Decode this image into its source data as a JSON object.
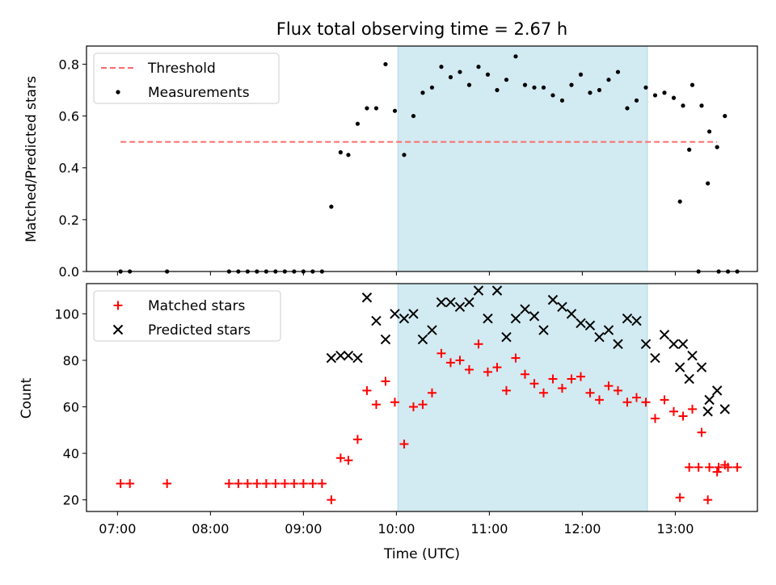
{
  "chart_data": [
    {
      "type": "scatter",
      "title": "Flux total observing time = 2.67 h",
      "ylabel": "Matched/Predicted stars",
      "ylim": [
        0.0,
        0.87
      ],
      "xlim": [
        "06:40",
        "13:53"
      ],
      "x_ticks": [
        "07:00",
        "08:00",
        "09:00",
        "10:00",
        "11:00",
        "12:00",
        "13:00"
      ],
      "y_ticks": [
        "0.0",
        "0.2",
        "0.4",
        "0.6",
        "0.8"
      ],
      "shaded_span": {
        "x": [
          "10:01",
          "12:42"
        ],
        "color": "#add8e6"
      },
      "legend": {
        "position": "top-left",
        "entries": [
          "Threshold",
          "Measurements"
        ]
      },
      "threshold": {
        "name": "Threshold",
        "y": 0.5,
        "x": [
          "07:02",
          "13:27"
        ],
        "color": "#ff6b6b",
        "style": "dashed"
      },
      "series": [
        {
          "name": "Measurements",
          "color": "#000000",
          "marker": "dot",
          "points": [
            [
              "07:02",
              0.0
            ],
            [
              "07:08",
              0.0
            ],
            [
              "07:32",
              0.0
            ],
            [
              "08:12",
              0.0
            ],
            [
              "08:18",
              0.0
            ],
            [
              "08:24",
              0.0
            ],
            [
              "08:30",
              0.0
            ],
            [
              "08:36",
              0.0
            ],
            [
              "08:42",
              0.0
            ],
            [
              "08:48",
              0.0
            ],
            [
              "08:54",
              0.0
            ],
            [
              "09:00",
              0.0
            ],
            [
              "09:06",
              0.0
            ],
            [
              "09:12",
              0.0
            ],
            [
              "09:18",
              0.25
            ],
            [
              "09:24",
              0.46
            ],
            [
              "09:29",
              0.45
            ],
            [
              "09:35",
              0.57
            ],
            [
              "09:41",
              0.63
            ],
            [
              "09:47",
              0.63
            ],
            [
              "09:53",
              0.8
            ],
            [
              "09:59",
              0.62
            ],
            [
              "10:05",
              0.45
            ],
            [
              "10:11",
              0.6
            ],
            [
              "10:17",
              0.69
            ],
            [
              "10:23",
              0.71
            ],
            [
              "10:29",
              0.79
            ],
            [
              "10:35",
              0.75
            ],
            [
              "10:41",
              0.77
            ],
            [
              "10:47",
              0.72
            ],
            [
              "10:53",
              0.79
            ],
            [
              "10:59",
              0.76
            ],
            [
              "11:05",
              0.7
            ],
            [
              "11:11",
              0.74
            ],
            [
              "11:17",
              0.83
            ],
            [
              "11:23",
              0.72
            ],
            [
              "11:29",
              0.71
            ],
            [
              "11:35",
              0.71
            ],
            [
              "11:41",
              0.68
            ],
            [
              "11:47",
              0.66
            ],
            [
              "11:53",
              0.72
            ],
            [
              "11:59",
              0.76
            ],
            [
              "12:05",
              0.69
            ],
            [
              "12:11",
              0.7
            ],
            [
              "12:17",
              0.74
            ],
            [
              "12:23",
              0.77
            ],
            [
              "12:29",
              0.63
            ],
            [
              "12:35",
              0.66
            ],
            [
              "12:41",
              0.71
            ],
            [
              "12:47",
              0.68
            ],
            [
              "12:53",
              0.69
            ],
            [
              "12:59",
              0.67
            ],
            [
              "13:05",
              0.64
            ],
            [
              "13:11",
              0.72
            ],
            [
              "13:17",
              0.64
            ],
            [
              "13:22",
              0.54
            ],
            [
              "13:28",
              0.0
            ],
            [
              "13:34",
              0.0
            ],
            [
              "13:40",
              0.0
            ],
            [
              "13:03",
              0.27
            ],
            [
              "13:09",
              0.47
            ],
            [
              "13:15",
              0.0
            ],
            [
              "13:21",
              0.34
            ],
            [
              "13:27",
              0.48
            ],
            [
              "13:32",
              0.6
            ]
          ]
        }
      ]
    },
    {
      "type": "scatter",
      "xlabel": "Time (UTC)",
      "ylabel": "Count",
      "ylim": [
        15,
        113
      ],
      "xlim": [
        "06:40",
        "13:53"
      ],
      "x_ticks": [
        "07:00",
        "08:00",
        "09:00",
        "10:00",
        "11:00",
        "12:00",
        "13:00"
      ],
      "y_ticks": [
        "20",
        "40",
        "60",
        "80",
        "100"
      ],
      "shaded_span": {
        "x": [
          "10:01",
          "12:42"
        ],
        "color": "#add8e6"
      },
      "legend": {
        "position": "top-left",
        "entries": [
          "Matched stars",
          "Predicted stars"
        ]
      },
      "series": [
        {
          "name": "Matched stars",
          "color": "#ff0000",
          "marker": "plus",
          "points": [
            [
              "07:02",
              27
            ],
            [
              "07:08",
              27
            ],
            [
              "07:32",
              27
            ],
            [
              "08:12",
              27
            ],
            [
              "08:18",
              27
            ],
            [
              "08:24",
              27
            ],
            [
              "08:30",
              27
            ],
            [
              "08:36",
              27
            ],
            [
              "08:42",
              27
            ],
            [
              "08:48",
              27
            ],
            [
              "08:54",
              27
            ],
            [
              "09:00",
              27
            ],
            [
              "09:06",
              27
            ],
            [
              "09:12",
              27
            ],
            [
              "09:18",
              20
            ],
            [
              "09:24",
              38
            ],
            [
              "09:29",
              37
            ],
            [
              "09:35",
              46
            ],
            [
              "09:41",
              67
            ],
            [
              "09:47",
              61
            ],
            [
              "09:53",
              71
            ],
            [
              "09:59",
              62
            ],
            [
              "10:05",
              44
            ],
            [
              "10:11",
              60
            ],
            [
              "10:17",
              61
            ],
            [
              "10:23",
              66
            ],
            [
              "10:29",
              83
            ],
            [
              "10:35",
              79
            ],
            [
              "10:41",
              80
            ],
            [
              "10:47",
              76
            ],
            [
              "10:53",
              87
            ],
            [
              "10:59",
              75
            ],
            [
              "11:05",
              77
            ],
            [
              "11:11",
              67
            ],
            [
              "11:17",
              81
            ],
            [
              "11:23",
              74
            ],
            [
              "11:29",
              70
            ],
            [
              "11:35",
              66
            ],
            [
              "11:41",
              72
            ],
            [
              "11:47",
              68
            ],
            [
              "11:53",
              72
            ],
            [
              "11:59",
              73
            ],
            [
              "12:05",
              66
            ],
            [
              "12:11",
              63
            ],
            [
              "12:17",
              69
            ],
            [
              "12:23",
              67
            ],
            [
              "12:29",
              62
            ],
            [
              "12:35",
              64
            ],
            [
              "12:41",
              62
            ],
            [
              "12:47",
              55
            ],
            [
              "12:53",
              63
            ],
            [
              "12:59",
              58
            ],
            [
              "13:05",
              56
            ],
            [
              "13:11",
              59
            ],
            [
              "13:17",
              49
            ],
            [
              "13:22",
              34
            ],
            [
              "13:28",
              34
            ],
            [
              "13:34",
              34
            ],
            [
              "13:40",
              34
            ],
            [
              "13:03",
              21
            ],
            [
              "13:09",
              34
            ],
            [
              "13:15",
              34
            ],
            [
              "13:21",
              20
            ],
            [
              "13:27",
              32
            ],
            [
              "13:32",
              35
            ]
          ]
        },
        {
          "name": "Predicted stars",
          "color": "#000000",
          "marker": "x",
          "points": [
            [
              "09:18",
              81
            ],
            [
              "09:24",
              82
            ],
            [
              "09:29",
              82
            ],
            [
              "09:35",
              81
            ],
            [
              "09:41",
              107
            ],
            [
              "09:47",
              97
            ],
            [
              "09:53",
              89
            ],
            [
              "09:59",
              100
            ],
            [
              "10:05",
              98
            ],
            [
              "10:11",
              100
            ],
            [
              "10:17",
              89
            ],
            [
              "10:23",
              93
            ],
            [
              "10:29",
              105
            ],
            [
              "10:35",
              105
            ],
            [
              "10:41",
              103
            ],
            [
              "10:47",
              105
            ],
            [
              "10:53",
              110
            ],
            [
              "10:59",
              98
            ],
            [
              "11:05",
              110
            ],
            [
              "11:11",
              90
            ],
            [
              "11:17",
              98
            ],
            [
              "11:23",
              102
            ],
            [
              "11:29",
              99
            ],
            [
              "11:35",
              93
            ],
            [
              "11:41",
              106
            ],
            [
              "11:47",
              103
            ],
            [
              "11:53",
              100
            ],
            [
              "11:59",
              96
            ],
            [
              "12:05",
              95
            ],
            [
              "12:11",
              90
            ],
            [
              "12:17",
              93
            ],
            [
              "12:23",
              87
            ],
            [
              "12:29",
              98
            ],
            [
              "12:35",
              97
            ],
            [
              "12:41",
              87
            ],
            [
              "12:47",
              81
            ],
            [
              "12:53",
              91
            ],
            [
              "12:59",
              87
            ],
            [
              "13:05",
              87
            ],
            [
              "13:11",
              82
            ],
            [
              "13:17",
              77
            ],
            [
              "13:22",
              63
            ],
            [
              "13:03",
              77
            ],
            [
              "13:09",
              72
            ],
            [
              "13:21",
              58
            ],
            [
              "13:27",
              67
            ],
            [
              "13:32",
              59
            ]
          ]
        }
      ]
    }
  ]
}
